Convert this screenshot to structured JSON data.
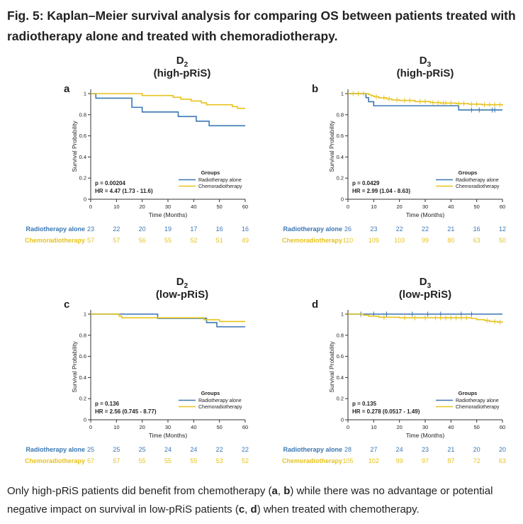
{
  "figure": {
    "title": "Fig. 5: Kaplan–Meier survival analysis for comparing OS between patients treated with radiotherapy alone and treated with chemoradiotherapy.",
    "caption": {
      "part1": "Only high-pRiS patients did benefit from chemotherapy (",
      "a": "a",
      "sep1": ", ",
      "b": "b",
      "part2": ") while there was no advantage or potential negative impact on survival in low-pRiS patients (",
      "c": "c",
      "sep2": ", ",
      "d": "d",
      "part3": ") when treated with chemotherapy."
    }
  },
  "colors": {
    "radiotherapy": "#3a77b4",
    "chemoradiotherapy": "#e7c31c",
    "axis": "#333333",
    "text": "#222222"
  },
  "chart_data": [
    {
      "panel": "a",
      "type": "line",
      "title_letter": "D",
      "title_sub": "2",
      "title_line2": "(high-pRiS)",
      "xlabel": "Time (Months)",
      "ylabel": "Survival Probability",
      "xlim": [
        0,
        60
      ],
      "ylim": [
        0,
        1
      ],
      "xticks": [
        0,
        10,
        20,
        30,
        40,
        50,
        60
      ],
      "yticks": [
        0,
        0.2,
        0.4,
        0.6,
        0.8,
        1
      ],
      "ytick_labels": [
        "0",
        "0.2",
        "0.4",
        "0.6",
        "0.8",
        "1"
      ],
      "p_value": "p = 0.00204",
      "hr": "HR = 4.47 (1.73 - 11.6)",
      "legend_title": "Groups",
      "legend_position": "bottom-right",
      "series": [
        {
          "name": "Radiotherapy alone",
          "color_key": "radiotherapy",
          "steps": [
            [
              0,
              1
            ],
            [
              2,
              0.957
            ],
            [
              16,
              0.87
            ],
            [
              20,
              0.826
            ],
            [
              34,
              0.783
            ],
            [
              41,
              0.739
            ],
            [
              46,
              0.696
            ],
            [
              60,
              0.696
            ]
          ],
          "censors": []
        },
        {
          "name": "Chemoradiotherapy",
          "color_key": "chemoradiotherapy",
          "steps": [
            [
              0,
              1
            ],
            [
              20,
              0.982
            ],
            [
              32,
              0.965
            ],
            [
              35,
              0.947
            ],
            [
              39,
              0.93
            ],
            [
              43,
              0.912
            ],
            [
              45,
              0.895
            ],
            [
              55,
              0.877
            ],
            [
              57,
              0.86
            ],
            [
              60,
              0.86
            ]
          ],
          "censors": []
        }
      ],
      "risk_table": {
        "x": [
          0,
          10,
          20,
          30,
          40,
          50,
          60
        ],
        "rows": [
          {
            "label": "Radiotherapy alone",
            "color_key": "radiotherapy",
            "values": [
              "23",
              "22",
              "20",
              "19",
              "17",
              "16",
              "16"
            ]
          },
          {
            "label": "Chemoradiotherapy",
            "color_key": "chemoradiotherapy",
            "values": [
              "57",
              "57",
              "56",
              "55",
              "52",
              "51",
              "49"
            ]
          }
        ]
      }
    },
    {
      "panel": "b",
      "type": "line",
      "title_letter": "D",
      "title_sub": "3",
      "title_line2": "(high-pRiS)",
      "xlabel": "Time (Months)",
      "ylabel": "Survival Probability",
      "xlim": [
        0,
        60
      ],
      "ylim": [
        0,
        1
      ],
      "xticks": [
        0,
        10,
        20,
        30,
        40,
        50,
        60
      ],
      "yticks": [
        0,
        0.2,
        0.4,
        0.6,
        0.8,
        1
      ],
      "ytick_labels": [
        "0",
        "0.2",
        "0.4",
        "0.6",
        "0.8",
        "1"
      ],
      "p_value": "p = 0.0429",
      "hr": "HR = 2.99 (1.04 - 8.63)",
      "legend_title": "Groups",
      "legend_position": "bottom-right",
      "series": [
        {
          "name": "Radiotherapy alone",
          "color_key": "radiotherapy",
          "steps": [
            [
              0,
              1
            ],
            [
              7,
              0.962
            ],
            [
              8,
              0.923
            ],
            [
              10,
              0.885
            ],
            [
              43,
              0.845
            ],
            [
              60,
              0.845
            ]
          ],
          "censors": [
            [
              48,
              0.845
            ],
            [
              51,
              0.845
            ],
            [
              56,
              0.845
            ],
            [
              57,
              0.845
            ]
          ]
        },
        {
          "name": "Chemoradiotherapy",
          "color_key": "chemoradiotherapy",
          "steps": [
            [
              0,
              1
            ],
            [
              8,
              0.99
            ],
            [
              9,
              0.98
            ],
            [
              10,
              0.97
            ],
            [
              12,
              0.96
            ],
            [
              15,
              0.95
            ],
            [
              17,
              0.94
            ],
            [
              20,
              0.935
            ],
            [
              26,
              0.925
            ],
            [
              32,
              0.915
            ],
            [
              36,
              0.91
            ],
            [
              42,
              0.905
            ],
            [
              47,
              0.9
            ],
            [
              52,
              0.895
            ],
            [
              60,
              0.885
            ]
          ],
          "censors": [
            [
              2,
              1
            ],
            [
              4,
              1
            ],
            [
              6,
              1
            ],
            [
              11,
              0.97
            ],
            [
              14,
              0.96
            ],
            [
              16,
              0.95
            ],
            [
              19,
              0.94
            ],
            [
              22,
              0.935
            ],
            [
              24,
              0.935
            ],
            [
              28,
              0.925
            ],
            [
              30,
              0.925
            ],
            [
              33,
              0.915
            ],
            [
              35,
              0.915
            ],
            [
              37,
              0.91
            ],
            [
              38,
              0.91
            ],
            [
              40,
              0.91
            ],
            [
              43,
              0.905
            ],
            [
              45,
              0.905
            ],
            [
              48,
              0.9
            ],
            [
              50,
              0.9
            ],
            [
              53,
              0.895
            ],
            [
              55,
              0.895
            ],
            [
              57,
              0.895
            ],
            [
              59,
              0.895
            ]
          ]
        }
      ],
      "risk_table": {
        "x": [
          0,
          10,
          20,
          30,
          40,
          50,
          60
        ],
        "rows": [
          {
            "label": "Radiotherapy alone",
            "color_key": "radiotherapy",
            "values": [
              "26",
              "23",
              "22",
              "22",
              "21",
              "16",
              "12"
            ]
          },
          {
            "label": "Chemoradiotherapy",
            "color_key": "chemoradiotherapy",
            "values": [
              "110",
              "109",
              "103",
              "99",
              "80",
              "63",
              "50"
            ]
          }
        ]
      }
    },
    {
      "panel": "c",
      "type": "line",
      "title_letter": "D",
      "title_sub": "2",
      "title_line2": "(low-pRiS)",
      "xlabel": "Time (Months)",
      "ylabel": "Survival Probability",
      "xlim": [
        0,
        60
      ],
      "ylim": [
        0,
        1
      ],
      "xticks": [
        0,
        10,
        20,
        30,
        40,
        50,
        60
      ],
      "yticks": [
        0,
        0.2,
        0.4,
        0.6,
        0.8,
        1
      ],
      "ytick_labels": [
        "0",
        "0.2",
        "0.4",
        "0.6",
        "0.8",
        "1"
      ],
      "p_value": "p = 0.136",
      "hr": "HR = 2.56 (0.745 - 8.77)",
      "legend_title": "Groups",
      "legend_position": "bottom-right",
      "series": [
        {
          "name": "Radiotherapy alone",
          "color_key": "radiotherapy",
          "steps": [
            [
              0,
              1
            ],
            [
              26,
              0.96
            ],
            [
              45,
              0.92
            ],
            [
              49,
              0.88
            ],
            [
              60,
              0.88
            ]
          ],
          "censors": []
        },
        {
          "name": "Chemoradiotherapy",
          "color_key": "chemoradiotherapy",
          "steps": [
            [
              0,
              1
            ],
            [
              11,
              0.982
            ],
            [
              12,
              0.965
            ],
            [
              44,
              0.947
            ],
            [
              50,
              0.93
            ],
            [
              60,
              0.93
            ]
          ],
          "censors": []
        }
      ],
      "risk_table": {
        "x": [
          0,
          10,
          20,
          30,
          40,
          50,
          60
        ],
        "rows": [
          {
            "label": "Radiotherapy alone",
            "color_key": "radiotherapy",
            "values": [
              "25",
              "25",
              "25",
              "24",
              "24",
              "22",
              "22"
            ]
          },
          {
            "label": "Chemoradiotherapy",
            "color_key": "chemoradiotherapy",
            "values": [
              "57",
              "57",
              "55",
              "55",
              "55",
              "53",
              "52"
            ]
          }
        ]
      }
    },
    {
      "panel": "d",
      "type": "line",
      "title_letter": "D",
      "title_sub": "3",
      "title_line2": "(low-pRiS)",
      "xlabel": "Time (Months)",
      "ylabel": "Survival Probability",
      "xlim": [
        0,
        60
      ],
      "ylim": [
        0,
        1
      ],
      "xticks": [
        0,
        10,
        20,
        30,
        40,
        50,
        60
      ],
      "yticks": [
        0,
        0.2,
        0.4,
        0.6,
        0.8,
        1
      ],
      "ytick_labels": [
        "0",
        "0.2",
        "0.4",
        "0.6",
        "0.8",
        "1"
      ],
      "p_value": "p = 0.135",
      "hr": "HR = 0.278 (0.0517 - 1.49)",
      "legend_title": "Groups",
      "legend_position": "bottom-right",
      "series": [
        {
          "name": "Radiotherapy alone",
          "color_key": "radiotherapy",
          "steps": [
            [
              0,
              1
            ],
            [
              60,
              1
            ]
          ],
          "censors": [
            [
              5,
              1
            ],
            [
              10,
              1
            ],
            [
              15,
              1
            ],
            [
              25,
              1
            ],
            [
              31,
              1
            ],
            [
              36,
              1
            ],
            [
              44,
              1
            ],
            [
              48,
              1
            ]
          ]
        },
        {
          "name": "Chemoradiotherapy",
          "color_key": "chemoradiotherapy",
          "steps": [
            [
              0,
              1
            ],
            [
              6,
              0.99
            ],
            [
              8,
              0.98
            ],
            [
              12,
              0.97
            ],
            [
              20,
              0.965
            ],
            [
              48,
              0.958
            ],
            [
              50,
              0.948
            ],
            [
              53,
              0.94
            ],
            [
              55,
              0.93
            ],
            [
              58,
              0.925
            ],
            [
              60,
              0.92
            ]
          ],
          "censors": [
            [
              14,
              0.97
            ],
            [
              22,
              0.965
            ],
            [
              26,
              0.965
            ],
            [
              30,
              0.965
            ],
            [
              34,
              0.965
            ],
            [
              36,
              0.965
            ],
            [
              38,
              0.965
            ],
            [
              40,
              0.965
            ],
            [
              42,
              0.965
            ],
            [
              44,
              0.965
            ],
            [
              46,
              0.965
            ],
            [
              54,
              0.94
            ],
            [
              57,
              0.93
            ],
            [
              59,
              0.925
            ]
          ]
        }
      ],
      "risk_table": {
        "x": [
          0,
          10,
          20,
          30,
          40,
          50,
          60
        ],
        "rows": [
          {
            "label": "Radiotherapy alone",
            "color_key": "radiotherapy",
            "values": [
              "28",
              "27",
              "24",
              "23",
              "21",
              "20",
              "20"
            ]
          },
          {
            "label": "Chemoradiotherapy",
            "color_key": "chemoradiotherapy",
            "values": [
              "105",
              "102",
              "99",
              "97",
              "87",
              "72",
              "63"
            ]
          }
        ]
      }
    }
  ]
}
